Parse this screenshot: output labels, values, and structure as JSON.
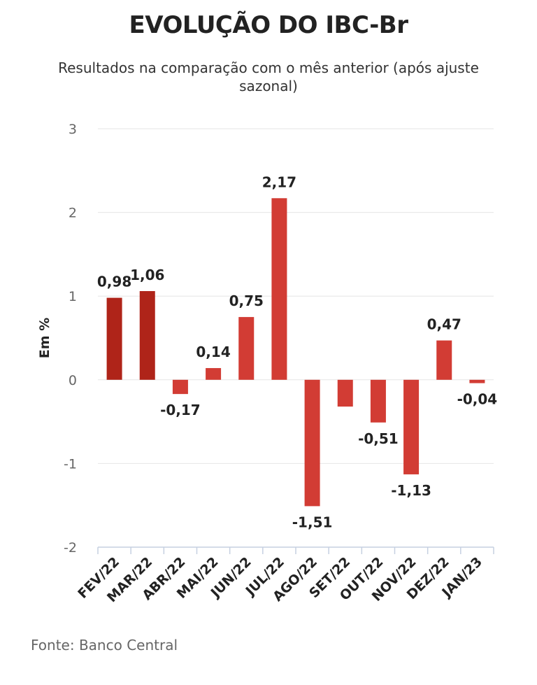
{
  "title": "EVOLUÇÃO DO IBC-Br",
  "subtitle": "Resultados na comparação com o mês anterior (após ajuste sazonal)",
  "source": "Fonte: Banco Central",
  "colors": {
    "bar_highlight": "#AF2419",
    "bar": "#D23C34",
    "grid": "#E6E6E6",
    "axis": "#C6D0E1"
  },
  "chart_data": {
    "type": "bar",
    "ylabel": "Em %",
    "ylim": [
      -2,
      3
    ],
    "yticks": [
      3,
      2,
      1,
      0,
      -1,
      -2
    ],
    "ytick_labels": [
      "3",
      "2",
      "1",
      "0",
      "-1",
      "-2"
    ],
    "grid": true,
    "categories": [
      "FEV/22",
      "MAR/22",
      "ABR/22",
      "MAI/22",
      "JUN/22",
      "JUL/22",
      "AGO/22",
      "SET/22",
      "OUT/22",
      "NOV/22",
      "DEZ/22",
      "JAN/23"
    ],
    "values": [
      0.98,
      1.06,
      -0.17,
      0.14,
      0.75,
      2.17,
      -1.51,
      -0.32,
      -0.51,
      -1.13,
      0.47,
      -0.04
    ],
    "data_labels": [
      "0,98",
      "1,06",
      "-0,17",
      "0,14",
      "0,75",
      "2,17",
      "-1,51",
      "",
      "-0,51",
      "-1,13",
      "0,47",
      "-0,04"
    ],
    "highlight": [
      true,
      true,
      false,
      false,
      false,
      false,
      false,
      false,
      false,
      false,
      false,
      false
    ]
  }
}
